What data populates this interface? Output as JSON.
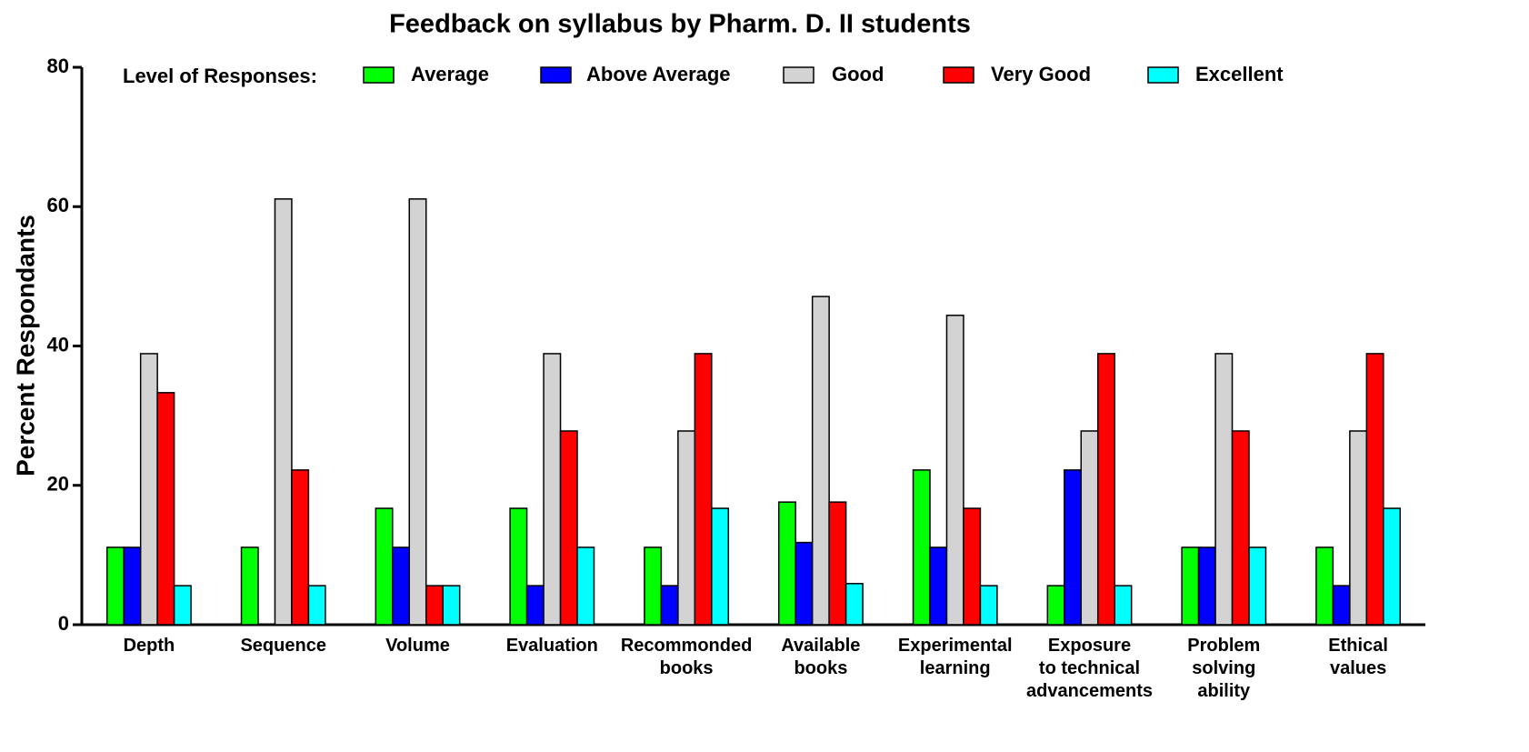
{
  "chart_data": {
    "type": "bar",
    "title": "Feedback on syllabus by Pharm. D. II students",
    "y_label": "Percent Respondants",
    "legend_title": "Level of Responses:",
    "legend_position": "top",
    "categories": [
      "Depth",
      "Sequence",
      "Volume",
      "Evaluation",
      "Recommonded\nbooks",
      "Available\nbooks",
      "Experimental\nlearning",
      "Exposure\nto technical\nadvancements",
      "Problem\nsolving\nability",
      "Ethical\nvalues"
    ],
    "series": [
      {
        "name": "Average",
        "color": "#00ff00",
        "values": [
          11.1,
          11.1,
          16.7,
          16.7,
          11.1,
          17.6,
          22.2,
          5.6,
          11.1,
          11.1
        ]
      },
      {
        "name": "Above Average",
        "color": "#0000ff",
        "values": [
          11.1,
          0,
          11.1,
          5.6,
          5.6,
          11.8,
          11.1,
          22.2,
          11.1,
          5.6
        ]
      },
      {
        "name": "Good",
        "color": "#d3d3d3",
        "values": [
          38.9,
          61.1,
          61.1,
          38.9,
          27.8,
          47.1,
          44.4,
          27.8,
          38.9,
          27.8
        ]
      },
      {
        "name": "Very Good",
        "color": "#ff0000",
        "values": [
          33.3,
          22.2,
          5.6,
          27.8,
          38.9,
          17.6,
          16.7,
          38.9,
          27.8,
          38.9
        ]
      },
      {
        "name": "Excellent",
        "color": "#00ffff",
        "values": [
          5.6,
          5.6,
          5.6,
          11.1,
          16.7,
          5.9,
          5.6,
          5.6,
          11.1,
          16.7
        ]
      }
    ],
    "ylim": [
      0,
      80
    ],
    "yticks": [
      0,
      20,
      40,
      60,
      80
    ],
    "grid": false
  }
}
